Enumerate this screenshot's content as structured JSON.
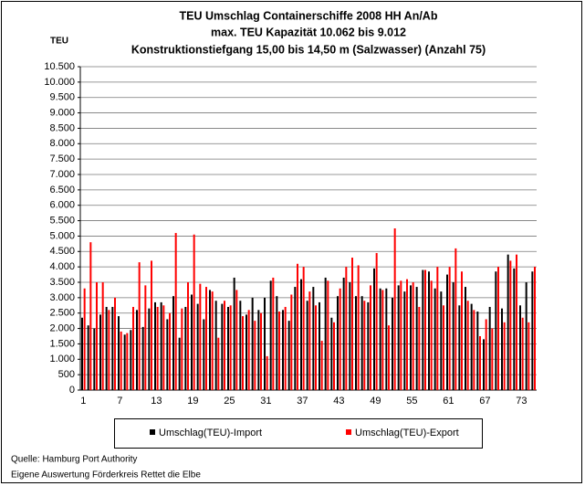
{
  "chart_data": {
    "type": "bar",
    "title": "TEU Umschlag Containerschiffe 2008 HH An/Ab",
    "subtitle": [
      "max. TEU Kapazität 10.062 bis 9.012",
      "Konstruktionstiefgang 15,00 bis 14,50 m (Salzwasser)  (Anzahl 75)"
    ],
    "y_label": "TEU",
    "categories": [
      "1",
      null,
      null,
      null,
      null,
      null,
      "7",
      null,
      null,
      null,
      null,
      null,
      "13",
      null,
      null,
      null,
      null,
      null,
      "19",
      null,
      null,
      null,
      null,
      null,
      "25",
      null,
      null,
      null,
      null,
      null,
      "31",
      null,
      null,
      null,
      null,
      null,
      "37",
      null,
      null,
      null,
      null,
      null,
      "43",
      null,
      null,
      null,
      null,
      null,
      "49",
      null,
      null,
      null,
      null,
      null,
      "55",
      null,
      null,
      null,
      null,
      null,
      "61",
      null,
      null,
      null,
      null,
      null,
      "67",
      null,
      null,
      null,
      null,
      null,
      "73",
      null,
      null
    ],
    "series": [
      {
        "name": "Umschlag(TEU)-Import",
        "color": "#000000",
        "values": [
          2350,
          2100,
          2000,
          2450,
          2700,
          2700,
          2400,
          1800,
          1950,
          2600,
          2050,
          2650,
          2850,
          2850,
          2300,
          3050,
          1700,
          2700,
          3100,
          2800,
          2300,
          3250,
          2900,
          2800,
          2700,
          3650,
          2900,
          2450,
          3000,
          2600,
          3000,
          3550,
          3050,
          2600,
          2250,
          3350,
          3600,
          2900,
          3350,
          2850,
          3650,
          2350,
          3050,
          3650,
          3500,
          3050,
          3050,
          2850,
          3950,
          3300,
          3300,
          3000,
          3400,
          3200,
          3400,
          3350,
          3900,
          3850,
          3300,
          3200,
          3750,
          3500,
          2750,
          3350,
          2800,
          2550,
          1650,
          2700,
          3850,
          2650,
          4400,
          3950,
          2750,
          3500,
          3850
        ]
      },
      {
        "name": "Umschlag(TEU)-Export",
        "color": "#ff0000",
        "values": [
          3300,
          4800,
          3500,
          3500,
          2600,
          3000,
          1900,
          1850,
          2700,
          4150,
          3400,
          4200,
          2700,
          2750,
          2500,
          5100,
          2650,
          3500,
          5050,
          3450,
          3350,
          3200,
          1700,
          2900,
          2750,
          3250,
          2400,
          2600,
          2250,
          2500,
          1100,
          3650,
          2550,
          2700,
          3100,
          4100,
          4000,
          3200,
          2750,
          1600,
          3550,
          2200,
          3300,
          4000,
          4300,
          4050,
          2900,
          3400,
          4450,
          3250,
          2100,
          5250,
          3550,
          3600,
          3500,
          2700,
          3900,
          3550,
          4000,
          2750,
          4000,
          4600,
          3850,
          2900,
          2600,
          1750,
          2300,
          2000,
          4000,
          2200,
          4200,
          4400,
          2350,
          2200,
          4000
        ]
      }
    ],
    "ylim": [
      0,
      10500
    ],
    "yticks": [
      0,
      500,
      {
        "value": 1000,
        "label": "1.000"
      },
      {
        "value": 1500,
        "label": "1.500"
      },
      {
        "value": 2000,
        "label": "2.000"
      },
      {
        "value": 2500,
        "label": "2.500"
      },
      {
        "value": 3000,
        "label": "3.000"
      },
      {
        "value": 3500,
        "label": "3.500"
      },
      {
        "value": 4000,
        "label": "4.000"
      },
      {
        "value": 4500,
        "label": "4.500"
      },
      {
        "value": 5000,
        "label": "5.000"
      },
      {
        "value": 5500,
        "label": "5.500"
      },
      {
        "value": 6000,
        "label": "6.000"
      },
      {
        "value": 6500,
        "label": "6.500"
      },
      {
        "value": 7000,
        "label": "7.000"
      },
      {
        "value": 7500,
        "label": "7.500"
      },
      {
        "value": 8000,
        "label": "8.000"
      },
      {
        "value": 8500,
        "label": "8.500"
      },
      {
        "value": 9000,
        "label": "9.000"
      },
      {
        "value": 9500,
        "label": "9.500"
      },
      {
        "value": 10000,
        "label": "10.000"
      },
      {
        "value": 10500,
        "label": "10.500"
      }
    ],
    "grid": true,
    "notes": [
      "Quelle: Hamburg Port Authority",
      "Eigene Auswertung Förderkreis Rettet die Elbe"
    ]
  }
}
